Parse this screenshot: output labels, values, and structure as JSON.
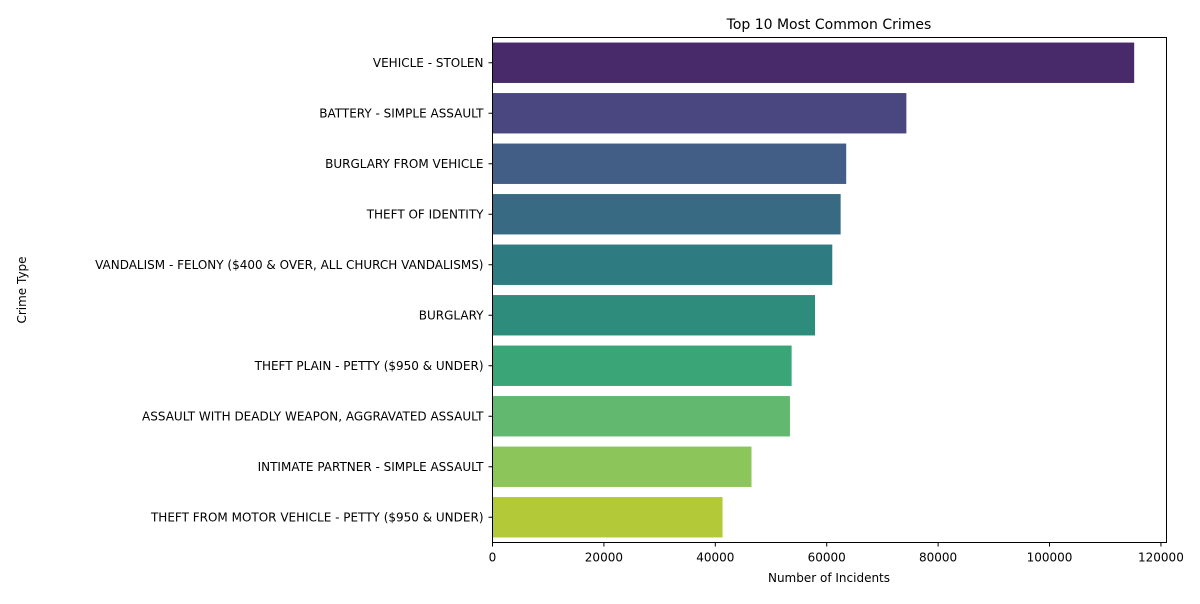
{
  "chart_data": {
    "type": "bar",
    "orientation": "horizontal",
    "title": "Top 10 Most Common Crimes",
    "xlabel": "Number of Incidents",
    "ylabel": "Crime Type",
    "xlim": [
      0,
      121000
    ],
    "xticks": [
      0,
      20000,
      40000,
      60000,
      80000,
      100000,
      120000
    ],
    "xtick_labels": [
      "0",
      "20000",
      "40000",
      "60000",
      "80000",
      "100000",
      "120000"
    ],
    "grid": false,
    "categories": [
      "VEHICLE - STOLEN",
      "BATTERY - SIMPLE ASSAULT",
      "BURGLARY FROM VEHICLE",
      "THEFT OF IDENTITY",
      "VANDALISM - FELONY ($400 & OVER, ALL CHURCH VANDALISMS)",
      "BURGLARY",
      "THEFT PLAIN - PETTY ($950 & UNDER)",
      "ASSAULT WITH DEADLY WEAPON, AGGRAVATED ASSAULT",
      "INTIMATE PARTNER - SIMPLE ASSAULT",
      "THEFT FROM MOTOR VEHICLE - PETTY ($950 & UNDER)"
    ],
    "values": [
      115200,
      74300,
      63500,
      62500,
      61000,
      57900,
      53700,
      53400,
      46500,
      41300
    ],
    "colors": [
      "#482a6b",
      "#4a4780",
      "#425e87",
      "#396a84",
      "#2f7b82",
      "#2d8c7c",
      "#3aa577",
      "#61b86e",
      "#8cc65a",
      "#b4c938"
    ]
  }
}
